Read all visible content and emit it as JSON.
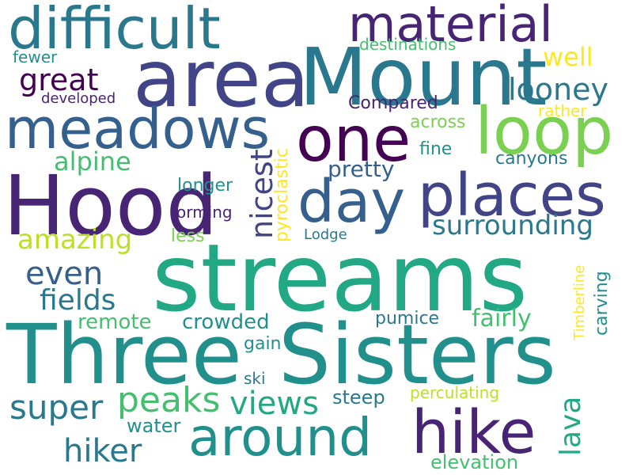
{
  "palette": {
    "dark_purple": "#440154",
    "purple": "#482475",
    "indigo": "#414487",
    "blue": "#355f8d",
    "steel_blue": "#2a788e",
    "teal": "#21908d",
    "green_teal": "#22a884",
    "green": "#44bf70",
    "light_green": "#7ad151",
    "lime": "#bddf26",
    "yellow": "#fde725"
  },
  "words": [
    {
      "text": "streams",
      "color": "#22a884"
    },
    {
      "text": "Three",
      "color": "#21908d"
    },
    {
      "text": "Sisters",
      "color": "#21908d"
    },
    {
      "text": "Hood",
      "color": "#482475"
    },
    {
      "text": "area",
      "color": "#414487"
    },
    {
      "text": "Mount",
      "color": "#2a788e"
    },
    {
      "text": "difficult",
      "color": "#2a788e"
    },
    {
      "text": "material",
      "color": "#482475"
    },
    {
      "text": "meadows",
      "color": "#355f8d"
    },
    {
      "text": "one",
      "color": "#440154"
    },
    {
      "text": "loop",
      "color": "#7ad151"
    },
    {
      "text": "places",
      "color": "#414487"
    },
    {
      "text": "day",
      "color": "#355f8d"
    },
    {
      "text": "hike",
      "color": "#482475"
    },
    {
      "text": "around",
      "color": "#21908d"
    },
    {
      "text": "great",
      "color": "#440154"
    },
    {
      "text": "looney",
      "color": "#2a788e"
    },
    {
      "text": "well",
      "color": "#fde725"
    },
    {
      "text": "nicest",
      "color": "#414487"
    },
    {
      "text": "pyroclastic",
      "color": "#fde725"
    },
    {
      "text": "Compared",
      "color": "#482475"
    },
    {
      "text": "across",
      "color": "#7ad151"
    },
    {
      "text": "rather",
      "color": "#fde725"
    },
    {
      "text": "fine",
      "color": "#21908d"
    },
    {
      "text": "canyons",
      "color": "#2a788e"
    },
    {
      "text": "pretty",
      "color": "#355f8d"
    },
    {
      "text": "alpine",
      "color": "#44bf70"
    },
    {
      "text": "longer",
      "color": "#21908d"
    },
    {
      "text": "forming",
      "color": "#482475"
    },
    {
      "text": "surrounding",
      "color": "#2a788e"
    },
    {
      "text": "amazing",
      "color": "#bddf26"
    },
    {
      "text": "less",
      "color": "#7ad151"
    },
    {
      "text": "Lodge",
      "color": "#2a788e"
    },
    {
      "text": "even",
      "color": "#355f8d"
    },
    {
      "text": "fields",
      "color": "#2a788e"
    },
    {
      "text": "remote",
      "color": "#44bf70"
    },
    {
      "text": "crowded",
      "color": "#21908d"
    },
    {
      "text": "pumice",
      "color": "#2a788e"
    },
    {
      "text": "fairly",
      "color": "#44bf70"
    },
    {
      "text": "Timberline",
      "color": "#fde725"
    },
    {
      "text": "carving",
      "color": "#21908d"
    },
    {
      "text": "gain",
      "color": "#21908d"
    },
    {
      "text": "peaks",
      "color": "#44bf70"
    },
    {
      "text": "views",
      "color": "#22a884"
    },
    {
      "text": "super",
      "color": "#2a788e"
    },
    {
      "text": "steep",
      "color": "#2a788e"
    },
    {
      "text": "lava",
      "color": "#22a884"
    },
    {
      "text": "ski",
      "color": "#2a788e"
    },
    {
      "text": "perculating",
      "color": "#bddf26"
    },
    {
      "text": "water",
      "color": "#21908d"
    },
    {
      "text": "hiker",
      "color": "#2a788e"
    },
    {
      "text": "elevation",
      "color": "#44bf70"
    },
    {
      "text": "destinations",
      "color": "#44bf70"
    },
    {
      "text": "fewer",
      "color": "#21908d"
    },
    {
      "text": "developed",
      "color": "#482475"
    }
  ]
}
